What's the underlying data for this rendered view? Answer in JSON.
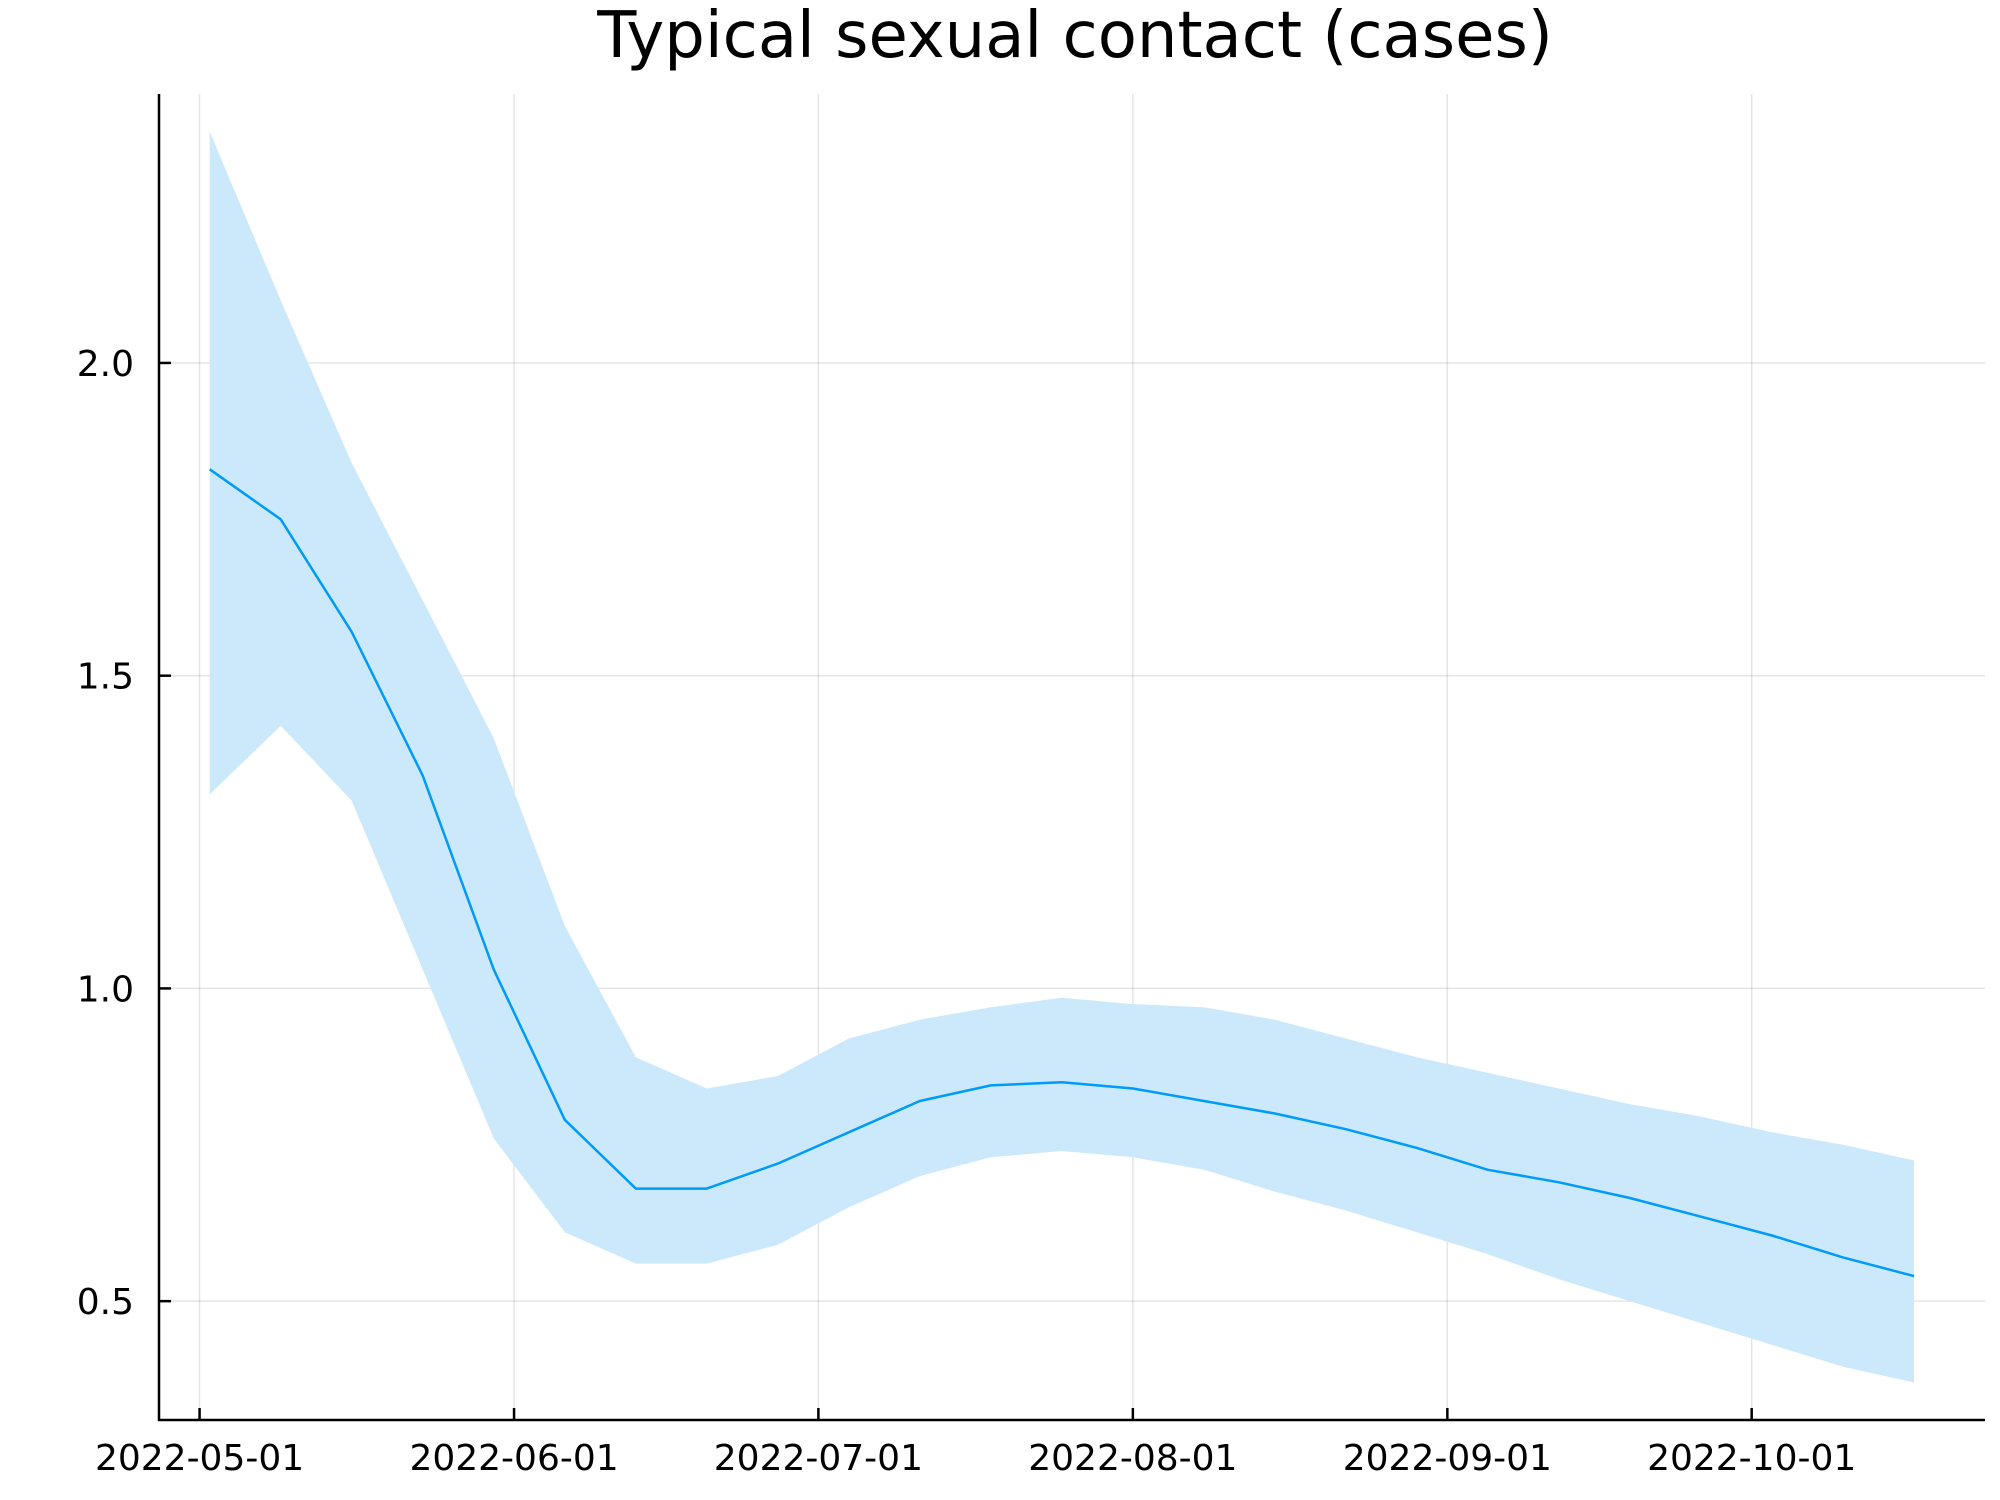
{
  "chart_data": {
    "type": "line",
    "title": "Typical sexual contact (cases)",
    "xlabel": "",
    "ylabel": "",
    "x_type": "date",
    "xlim": [
      "2022-04-27",
      "2022-10-24"
    ],
    "ylim": [
      0.31,
      2.43
    ],
    "grid": true,
    "legend": "none",
    "x_ticks": [
      "2022-05-01",
      "2022-06-01",
      "2022-07-01",
      "2022-08-01",
      "2022-09-01",
      "2022-10-01"
    ],
    "y_ticks": [
      0.5,
      1.0,
      1.5,
      2.0
    ],
    "y_tick_labels": [
      "0.5",
      "1.0",
      "1.5",
      "2.0"
    ],
    "colors": {
      "line": "#009af9",
      "band": "#cce9fb"
    },
    "series": [
      {
        "type": "line",
        "x": [
          "2022-05-02",
          "2022-05-09",
          "2022-05-16",
          "2022-05-23",
          "2022-05-30",
          "2022-06-06",
          "2022-06-13",
          "2022-06-20",
          "2022-06-27",
          "2022-07-04",
          "2022-07-11",
          "2022-07-18",
          "2022-07-25",
          "2022-08-01",
          "2022-08-08",
          "2022-08-15",
          "2022-08-22",
          "2022-08-29",
          "2022-09-05",
          "2022-09-12",
          "2022-09-19",
          "2022-09-26",
          "2022-10-03",
          "2022-10-10",
          "2022-10-17"
        ],
        "y": [
          1.83,
          1.75,
          1.57,
          1.34,
          1.03,
          0.79,
          0.68,
          0.68,
          0.72,
          0.77,
          0.82,
          0.845,
          0.85,
          0.84,
          0.82,
          0.8,
          0.775,
          0.745,
          0.71,
          0.69,
          0.665,
          0.635,
          0.605,
          0.57,
          0.54
        ],
        "lower": [
          1.31,
          1.42,
          1.3,
          1.03,
          0.76,
          0.61,
          0.56,
          0.56,
          0.59,
          0.65,
          0.7,
          0.73,
          0.74,
          0.73,
          0.71,
          0.675,
          0.645,
          0.61,
          0.575,
          0.535,
          0.5,
          0.465,
          0.43,
          0.395,
          0.37
        ],
        "upper": [
          2.37,
          2.1,
          1.84,
          1.62,
          1.4,
          1.1,
          0.89,
          0.84,
          0.86,
          0.92,
          0.95,
          0.97,
          0.985,
          0.975,
          0.97,
          0.95,
          0.92,
          0.89,
          0.865,
          0.84,
          0.815,
          0.795,
          0.77,
          0.75,
          0.725
        ]
      }
    ]
  }
}
